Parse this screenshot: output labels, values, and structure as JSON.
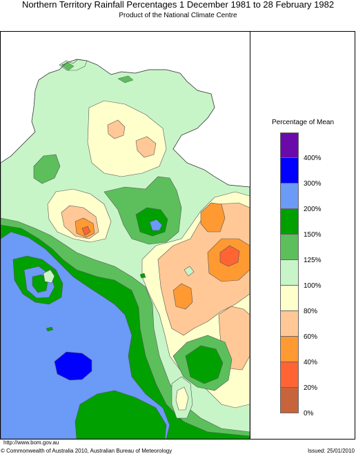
{
  "title": "Northern Territory Rainfall Percentages 1 December 1981 to 28 February 1982",
  "subtitle": "Product of the National Climate Centre",
  "legend": {
    "title": "Percentage of Mean",
    "bands": [
      {
        "color": "#6a0aab"
      },
      {
        "color": "#0000ff"
      },
      {
        "color": "#6b9af7"
      },
      {
        "color": "#00a000"
      },
      {
        "color": "#5cbf5c"
      },
      {
        "color": "#c8f5c8"
      },
      {
        "color": "#ffffcc"
      },
      {
        "color": "#ffc896"
      },
      {
        "color": "#ff9a32"
      },
      {
        "color": "#ff6432"
      },
      {
        "color": "#c8643c"
      }
    ],
    "labels": [
      "400%",
      "300%",
      "200%",
      "150%",
      "125%",
      "100%",
      "80%",
      "60%",
      "40%",
      "20%",
      "0%"
    ]
  },
  "footer": {
    "url": "http://www.bom.gov.au",
    "copyright": "© Commonwealth of Australia 2010, Australian Bureau of Meteorology",
    "issued": "Issued: 25/01/2010"
  }
}
